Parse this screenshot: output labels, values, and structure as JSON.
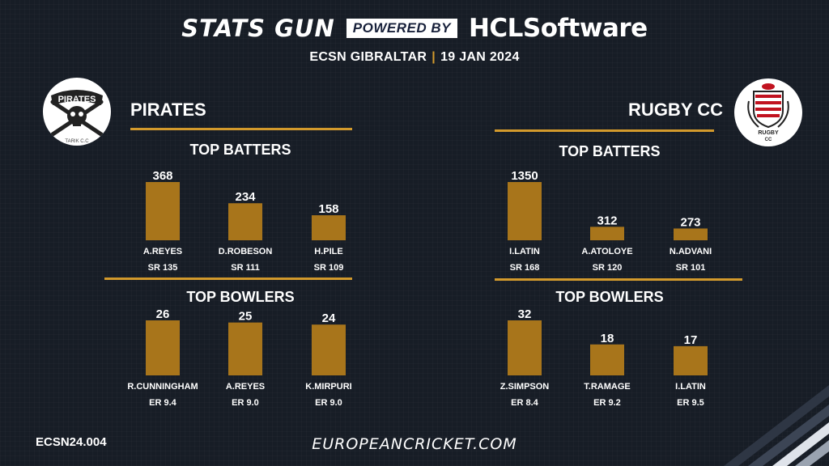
{
  "header": {
    "brand": "STATS GUN",
    "powered_by": "POWERED BY",
    "sponsor_hcl": "HCL",
    "sponsor_software": "Software",
    "event": "ECSN  GIBRALTAR",
    "date": "19 JAN 2024"
  },
  "teams": [
    {
      "name": "PIRATES",
      "logo_text": "PIRATES",
      "logo_caption": "TARIK C.C"
    },
    {
      "name": "RUGBY CC",
      "logo_text": "RUGBY",
      "logo_caption": "CC"
    }
  ],
  "section_titles": {
    "batters": "TOP BATTERS",
    "bowlers": "TOP BOWLERS"
  },
  "colors": {
    "bar": "#a8751b",
    "accent": "#d39a2c",
    "background": "#171d26"
  },
  "chart_data": [
    {
      "type": "bar",
      "title": "TOP BATTERS",
      "team": "PIRATES",
      "categories": [
        "A.REYES",
        "D.ROBESON",
        "H.PILE"
      ],
      "values": [
        368,
        234,
        158
      ],
      "stat_labels": [
        "SR 135",
        "SR 111",
        "SR 109"
      ],
      "ylim": [
        0,
        368
      ]
    },
    {
      "type": "bar",
      "title": "TOP BOWLERS",
      "team": "PIRATES",
      "categories": [
        "R.CUNNINGHAM",
        "A.REYES",
        "K.MIRPURI"
      ],
      "values": [
        26,
        25,
        24
      ],
      "stat_labels": [
        "ER 9.4",
        "ER 9.0",
        "ER 9.0"
      ],
      "ylim": [
        0,
        26
      ]
    },
    {
      "type": "bar",
      "title": "TOP BATTERS",
      "team": "RUGBY CC",
      "categories": [
        "I.LATIN",
        "A.ATOLOYE",
        "N.ADVANI"
      ],
      "values": [
        1350,
        312,
        273
      ],
      "stat_labels": [
        "SR 168",
        "SR 120",
        "SR 101"
      ],
      "ylim": [
        0,
        1350
      ]
    },
    {
      "type": "bar",
      "title": "TOP BOWLERS",
      "team": "RUGBY CC",
      "categories": [
        "Z.SIMPSON",
        "T.RAMAGE",
        "I.LATIN"
      ],
      "values": [
        32,
        18,
        17
      ],
      "stat_labels": [
        "ER 8.4",
        "ER 9.2",
        "ER 9.5"
      ],
      "ylim": [
        0,
        32
      ]
    }
  ],
  "footer": {
    "code": "ECSN24.004",
    "website": "EUROPEANCRICKET.COM"
  }
}
